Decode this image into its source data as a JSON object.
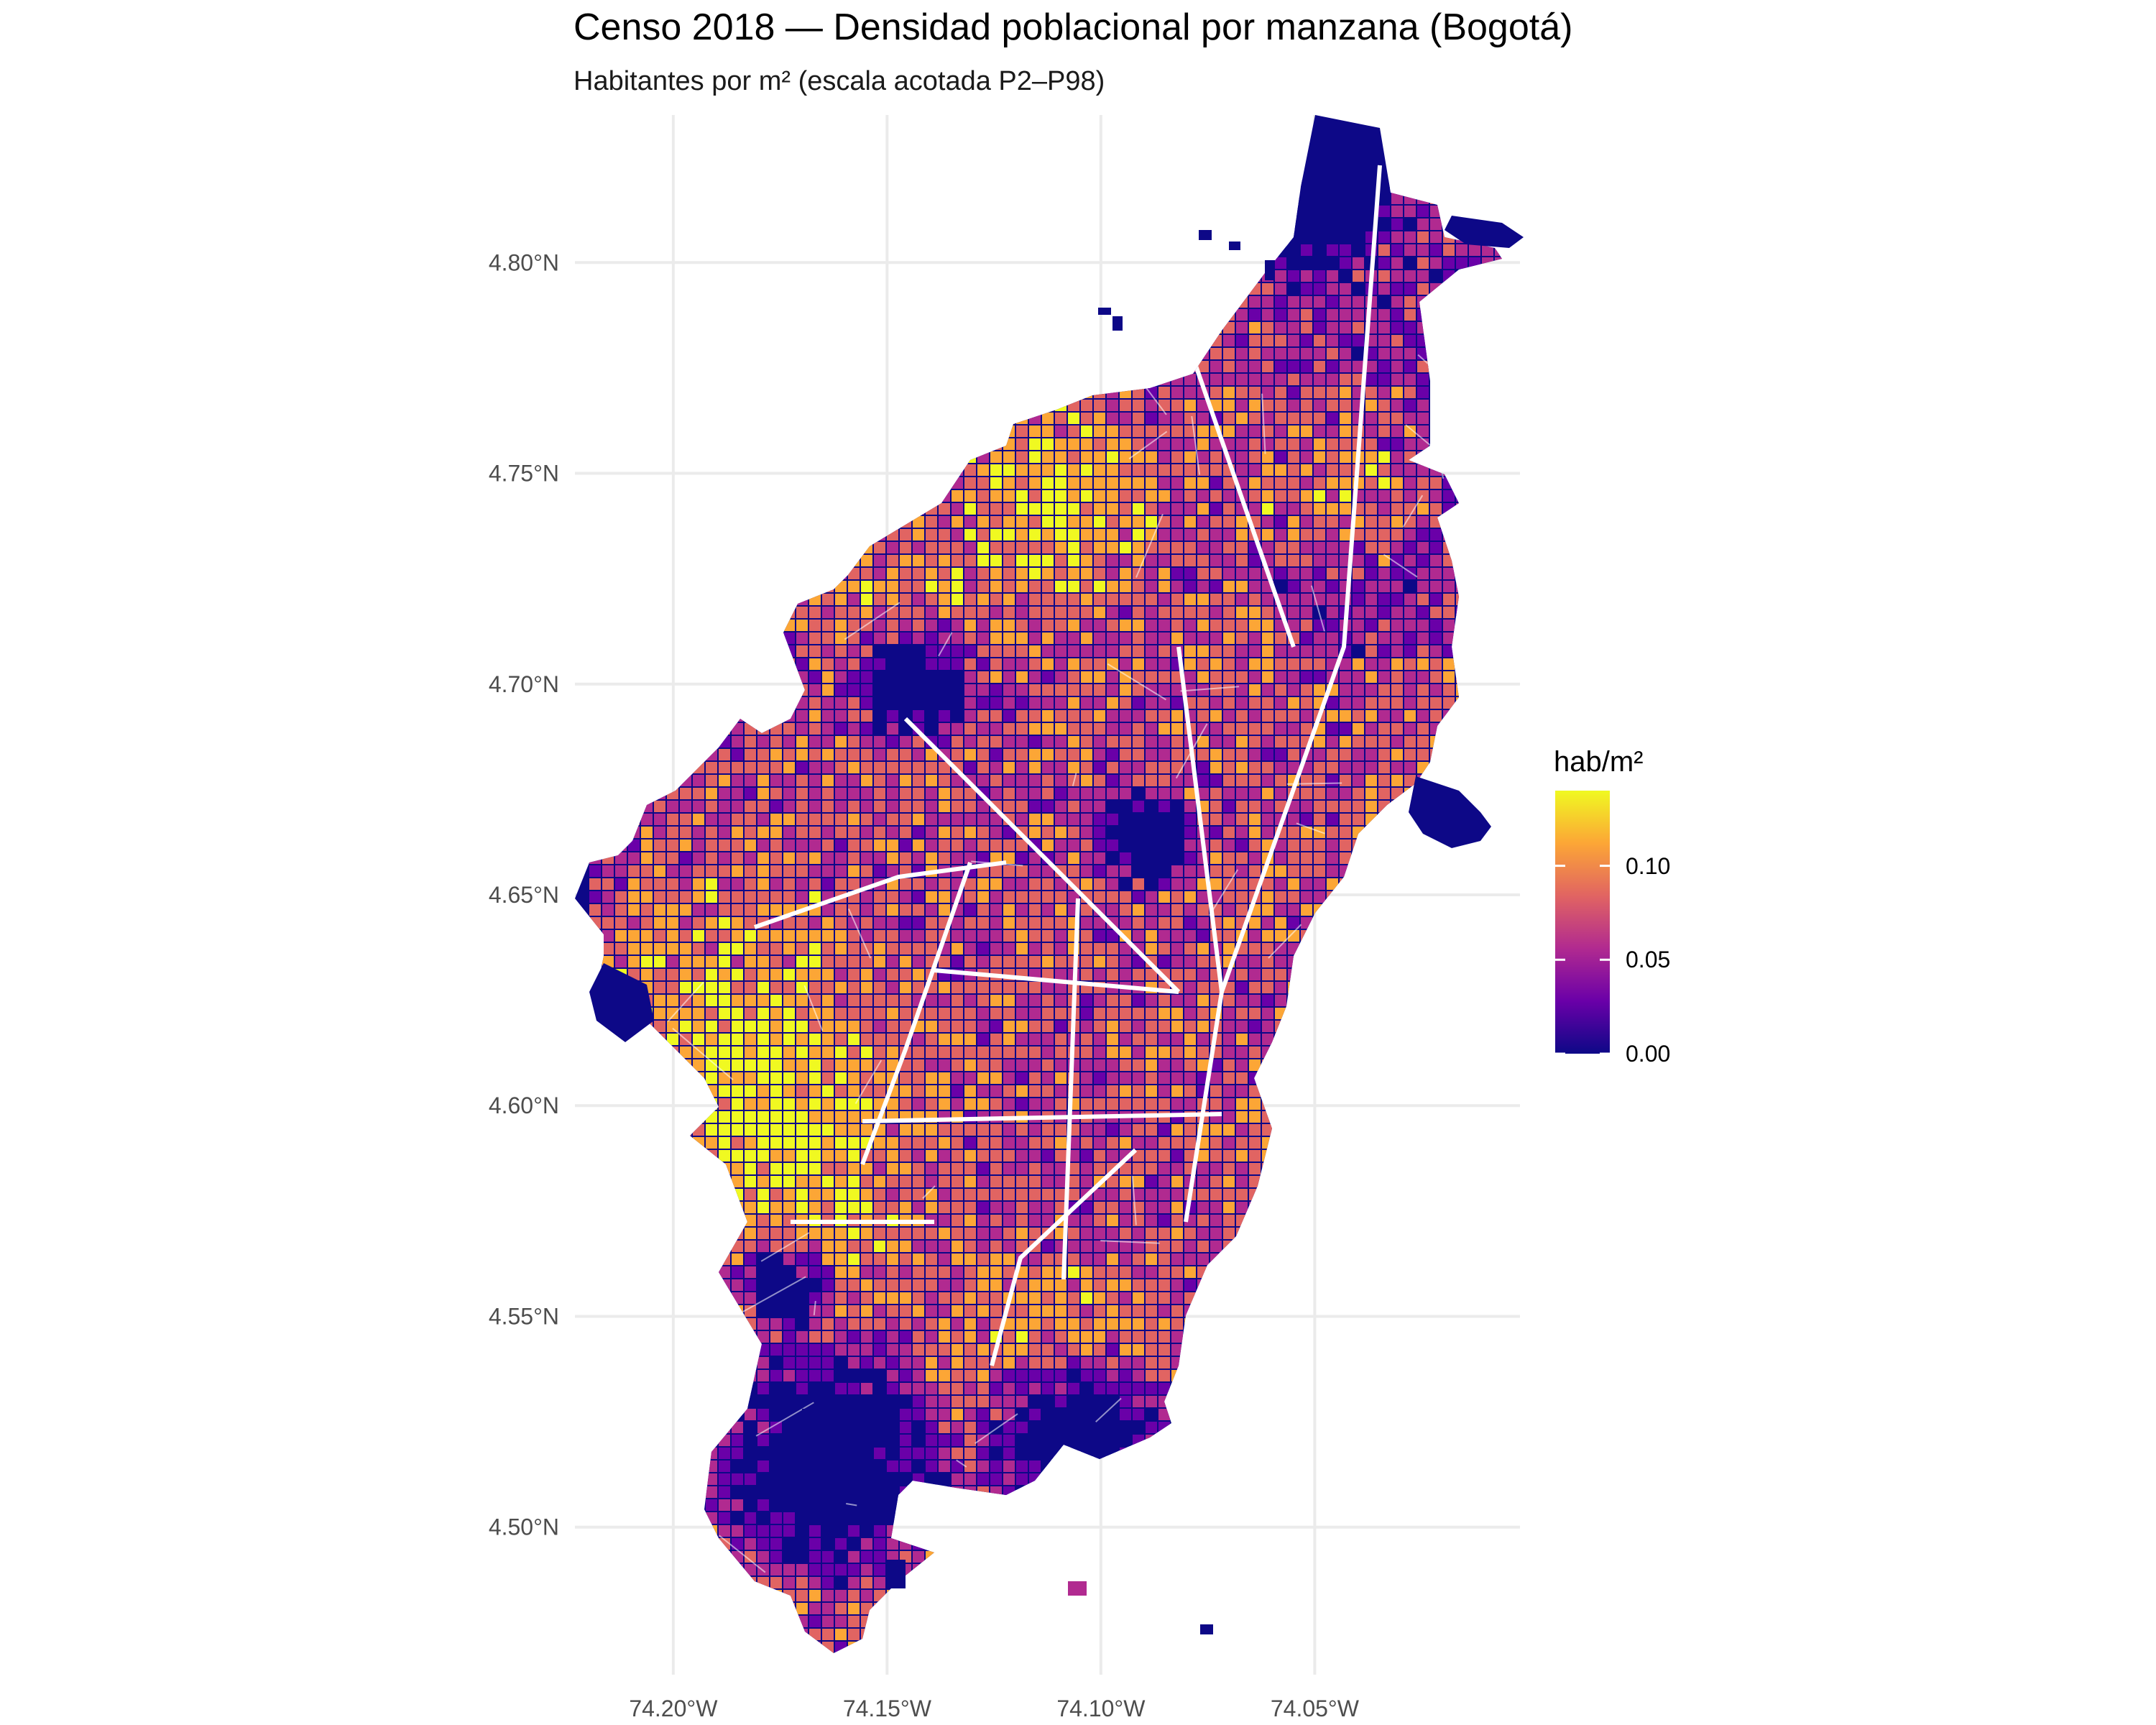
{
  "title": "Censo 2018 — Densidad poblacional por manzana (Bogotá)",
  "subtitle": "Habitantes por m² (escala acotada P2–P98)",
  "map": {
    "x_ticks": [
      {
        "lon": -74.2,
        "label": "74.20°W"
      },
      {
        "lon": -74.15,
        "label": "74.15°W"
      },
      {
        "lon": -74.1,
        "label": "74.10°W"
      },
      {
        "lon": -74.05,
        "label": "74.05°W"
      }
    ],
    "y_ticks": [
      {
        "lat": 4.8,
        "label": "4.80°N"
      },
      {
        "lat": 4.75,
        "label": "4.75°N"
      },
      {
        "lat": 4.7,
        "label": "4.70°N"
      },
      {
        "lat": 4.65,
        "label": "4.65°N"
      },
      {
        "lat": 4.6,
        "label": "4.60°N"
      },
      {
        "lat": 4.55,
        "label": "4.55°N"
      },
      {
        "lat": 4.5,
        "label": "4.50°N"
      }
    ],
    "lon_range": [
      -74.223,
      -74.002
    ],
    "lat_range": [
      4.465,
      4.835
    ],
    "grid": true,
    "palette": "plasma",
    "palette_colors": [
      "#0d0887",
      "#6a00a8",
      "#b12a90",
      "#e16462",
      "#fca636",
      "#f0f921"
    ],
    "road_color": "#ffffff"
  },
  "legend": {
    "title": "hab/m²",
    "min": 0,
    "max": 0.14,
    "ticks": [
      {
        "value": 0.0,
        "label": "0.00"
      },
      {
        "value": 0.05,
        "label": "0.05"
      },
      {
        "value": 0.1,
        "label": "0.10"
      }
    ],
    "position": "right"
  }
}
